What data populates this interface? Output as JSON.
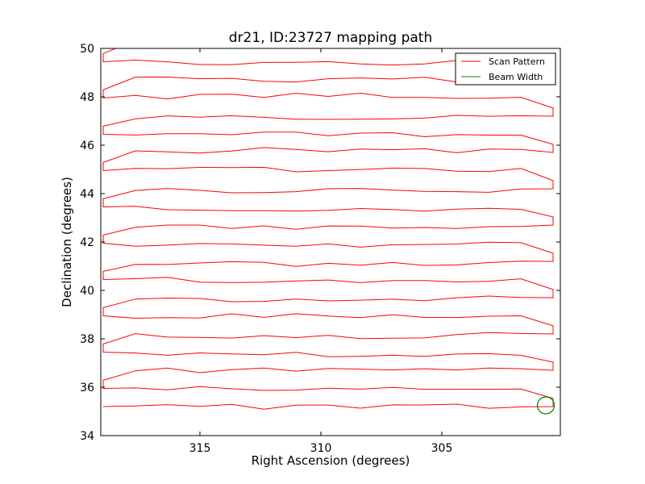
{
  "chart_data": {
    "type": "line",
    "title": "dr21, ID:23727 mapping path",
    "xlabel": "Right Ascension (degrees)",
    "ylabel": "Declination (degrees)",
    "xlim": [
      319.1,
      300.1
    ],
    "ylim": [
      34,
      50
    ],
    "x_inverted": true,
    "xticks": [
      315,
      310,
      305
    ],
    "xtick_labels": [
      "315",
      "310",
      "305"
    ],
    "yticks": [
      34,
      36,
      38,
      40,
      42,
      44,
      46,
      48,
      50
    ],
    "ytick_labels": [
      "34",
      "36",
      "38",
      "40",
      "42",
      "44",
      "46",
      "48",
      "50"
    ],
    "grid": false,
    "legend_position": "top-right",
    "scan_ra_start": 319.0,
    "scan_ra_end": 300.4,
    "scan_dec_start": 35.2,
    "scan_dec_step": 0.75,
    "scan_leg_count": 20,
    "scan_last_ra": 306.4,
    "series": [
      {
        "name": "Scan Pattern",
        "color": "#ff0000"
      },
      {
        "name": "Beam Width",
        "color": "#008000",
        "center_ra": 300.7,
        "center_dec": 35.25,
        "radius_deg": 0.35
      }
    ]
  }
}
